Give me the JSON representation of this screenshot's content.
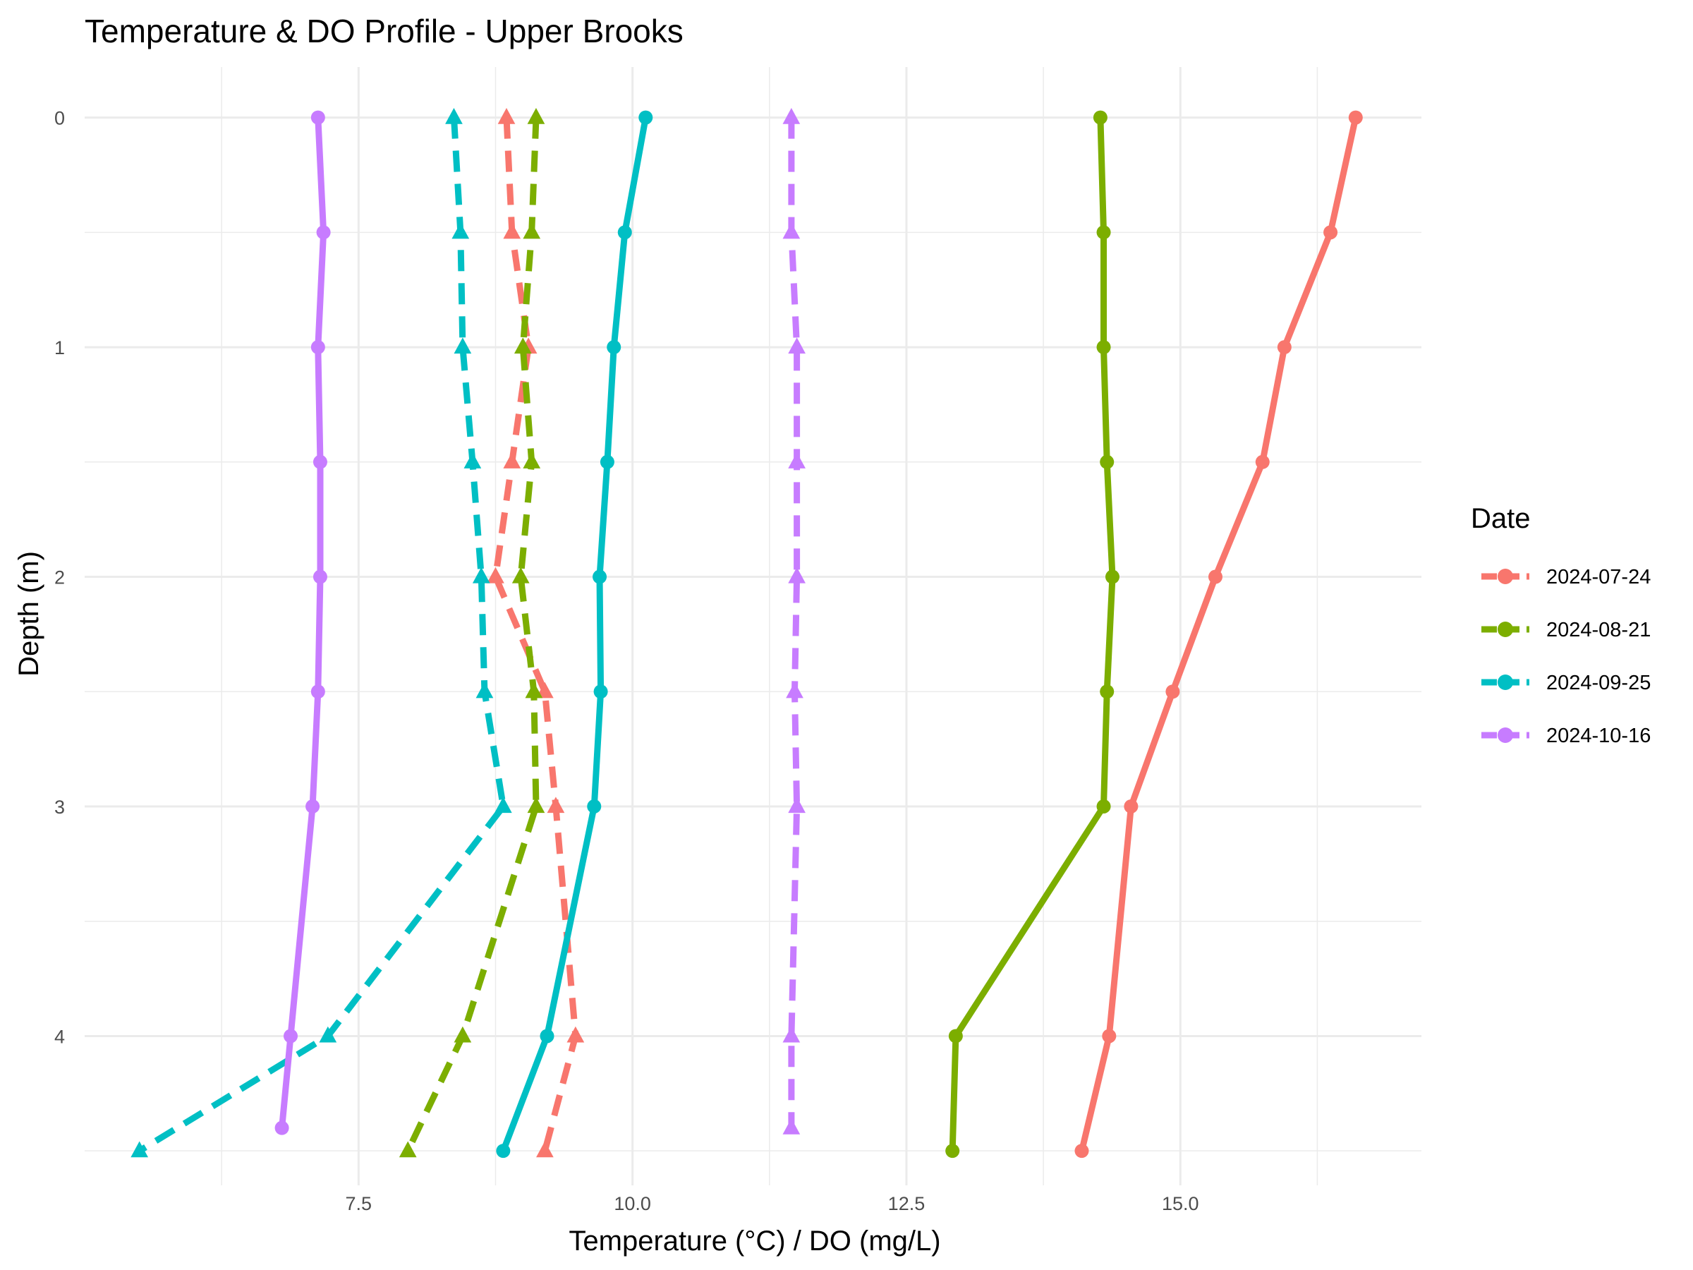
{
  "chart_data": {
    "type": "line",
    "title": "Temperature & DO Profile - Upper Brooks",
    "xlabel": "Temperature (°C) / DO (mg/L)",
    "ylabel": "Depth (m)",
    "xlim": [
      5.0,
      17.2
    ],
    "ylim": [
      4.65,
      -0.22
    ],
    "y_reversed": true,
    "x_ticks": [
      7.5,
      10.0,
      12.5,
      15.0
    ],
    "x_tick_labels": [
      "7.5",
      "10.0",
      "12.5",
      "15.0"
    ],
    "y_ticks": [
      0,
      1,
      2,
      3,
      4
    ],
    "y_tick_labels": [
      "0",
      "1",
      "2",
      "3",
      "4"
    ],
    "grid": true,
    "legend": {
      "title": "Date",
      "position": "right",
      "entries": [
        "2024-07-24",
        "2024-08-21",
        "2024-09-25",
        "2024-10-16"
      ]
    },
    "colors": {
      "2024-07-24": "#F8766D",
      "2024-08-21": "#7CAE00",
      "2024-09-25": "#00BFC4",
      "2024-10-16": "#C77CFF"
    },
    "series": [
      {
        "name": "2024-07-24",
        "variable": "temperature",
        "line": "solid",
        "marker": "circle",
        "points": [
          [
            16.6,
            0
          ],
          [
            16.37,
            0.5
          ],
          [
            15.95,
            1
          ],
          [
            15.75,
            1.5
          ],
          [
            15.32,
            2
          ],
          [
            14.93,
            2.5
          ],
          [
            14.55,
            3
          ],
          [
            14.35,
            4
          ],
          [
            14.1,
            4.5
          ]
        ]
      },
      {
        "name": "2024-07-24",
        "variable": "DO",
        "line": "dashed",
        "marker": "triangle",
        "points": [
          [
            8.85,
            0
          ],
          [
            8.9,
            0.5
          ],
          [
            9.05,
            1
          ],
          [
            8.9,
            1.5
          ],
          [
            8.75,
            2
          ],
          [
            9.2,
            2.5
          ],
          [
            9.3,
            3
          ],
          [
            9.48,
            4
          ],
          [
            9.2,
            4.5
          ]
        ]
      },
      {
        "name": "2024-08-21",
        "variable": "temperature",
        "line": "solid",
        "marker": "circle",
        "points": [
          [
            14.27,
            0
          ],
          [
            14.3,
            0.5
          ],
          [
            14.3,
            1
          ],
          [
            14.33,
            1.5
          ],
          [
            14.38,
            2
          ],
          [
            14.33,
            2.5
          ],
          [
            14.3,
            3
          ],
          [
            12.95,
            4
          ],
          [
            12.92,
            4.5
          ]
        ]
      },
      {
        "name": "2024-08-21",
        "variable": "DO",
        "line": "dashed",
        "marker": "triangle",
        "points": [
          [
            9.12,
            0
          ],
          [
            9.08,
            0.5
          ],
          [
            9.0,
            1
          ],
          [
            9.08,
            1.5
          ],
          [
            8.98,
            2
          ],
          [
            9.1,
            2.5
          ],
          [
            9.12,
            3
          ],
          [
            8.45,
            4
          ],
          [
            7.95,
            4.5
          ]
        ]
      },
      {
        "name": "2024-09-25",
        "variable": "temperature",
        "line": "solid",
        "marker": "circle",
        "points": [
          [
            10.12,
            0
          ],
          [
            9.93,
            0.5
          ],
          [
            9.83,
            1
          ],
          [
            9.77,
            1.5
          ],
          [
            9.7,
            2
          ],
          [
            9.71,
            2.5
          ],
          [
            9.65,
            3
          ],
          [
            9.22,
            4
          ],
          [
            8.82,
            4.5
          ]
        ]
      },
      {
        "name": "2024-09-25",
        "variable": "DO",
        "line": "dashed",
        "marker": "triangle",
        "points": [
          [
            8.37,
            0
          ],
          [
            8.43,
            0.5
          ],
          [
            8.45,
            1
          ],
          [
            8.54,
            1.5
          ],
          [
            8.62,
            2
          ],
          [
            8.65,
            2.5
          ],
          [
            8.82,
            3
          ],
          [
            7.22,
            4
          ],
          [
            5.5,
            4.5
          ]
        ]
      },
      {
        "name": "2024-10-16",
        "variable": "temperature",
        "line": "solid",
        "marker": "circle",
        "points": [
          [
            7.13,
            0
          ],
          [
            7.18,
            0.5
          ],
          [
            7.13,
            1
          ],
          [
            7.15,
            1.5
          ],
          [
            7.15,
            2
          ],
          [
            7.13,
            2.5
          ],
          [
            7.08,
            3
          ],
          [
            6.88,
            4
          ],
          [
            6.8,
            4.4
          ]
        ]
      },
      {
        "name": "2024-10-16",
        "variable": "DO",
        "line": "dashed",
        "marker": "triangle",
        "points": [
          [
            11.45,
            0
          ],
          [
            11.45,
            0.5
          ],
          [
            11.5,
            1
          ],
          [
            11.5,
            1.5
          ],
          [
            11.5,
            2
          ],
          [
            11.48,
            2.5
          ],
          [
            11.5,
            3
          ],
          [
            11.45,
            4
          ],
          [
            11.45,
            4.4
          ]
        ]
      }
    ]
  }
}
